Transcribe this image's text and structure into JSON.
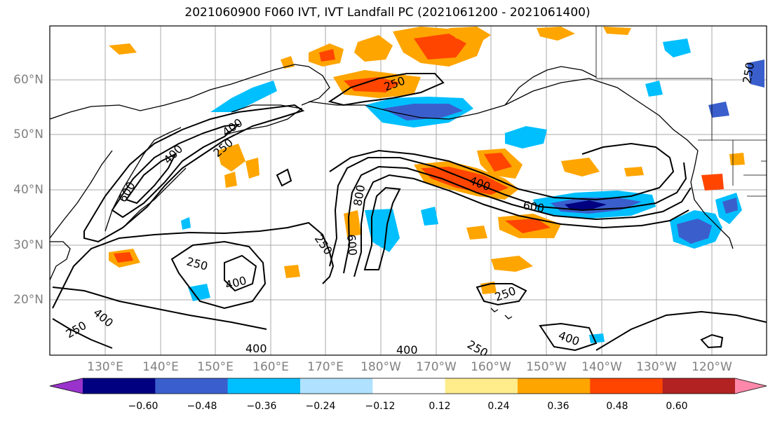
{
  "title": "2021060900 F060 IVT, IVT Landfall PC (2021061200 - 2021061400)",
  "lat_labels": [
    "60°N",
    "50°N",
    "40°N",
    "30°N",
    "20°N"
  ],
  "lon_labels": [
    "130°E",
    "140°E",
    "150°E",
    "160°E",
    "170°E",
    "180°W",
    "170°W",
    "160°W",
    "150°W",
    "140°W",
    "130°W",
    "120°W"
  ],
  "contour_labels": [
    "250",
    "400",
    "600",
    "800"
  ],
  "colorbar": {
    "ticks": [
      "−0.60",
      "−0.48",
      "−0.36",
      "−0.24",
      "−0.12",
      "0.12",
      "0.24",
      "0.36",
      "0.48",
      "0.60"
    ],
    "colors": [
      "#9933cc",
      "#000080",
      "#3a5fcd",
      "#00bfff",
      "#b0e2ff",
      "#ffffff",
      "#ffec8b",
      "#ffa500",
      "#ff4500",
      "#b22222",
      "#ff88aa"
    ]
  }
}
